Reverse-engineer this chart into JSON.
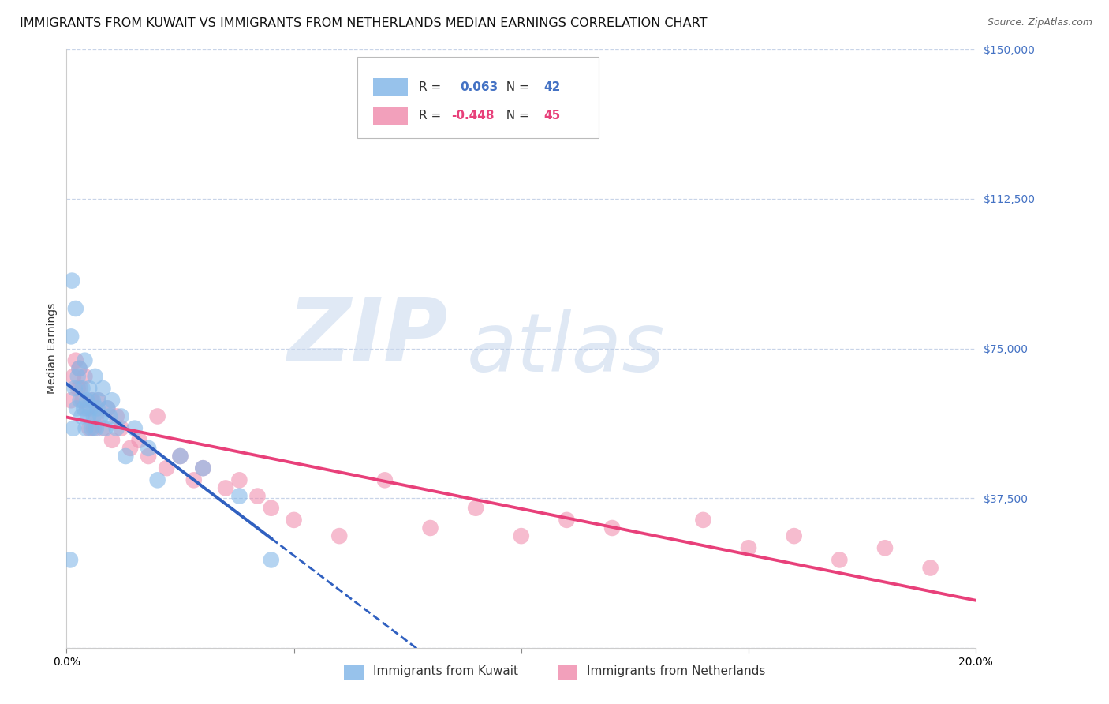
{
  "title": "IMMIGRANTS FROM KUWAIT VS IMMIGRANTS FROM NETHERLANDS MEDIAN EARNINGS CORRELATION CHART",
  "source": "Source: ZipAtlas.com",
  "ylabel": "Median Earnings",
  "xlim": [
    0.0,
    0.2
  ],
  "ylim": [
    0,
    150000
  ],
  "yticks": [
    0,
    37500,
    75000,
    112500,
    150000
  ],
  "ytick_labels": [
    "",
    "$37,500",
    "$75,000",
    "$112,500",
    "$150,000"
  ],
  "xticks": [
    0.0,
    0.05,
    0.1,
    0.15,
    0.2
  ],
  "xtick_labels": [
    "0.0%",
    "",
    "",
    "",
    "20.0%"
  ],
  "watermark_zip": "ZIP",
  "watermark_atlas": "atlas",
  "kuwait_color": "#85b8e8",
  "netherlands_color": "#f090b0",
  "kuwait_R": 0.063,
  "kuwait_N": 42,
  "netherlands_R": -0.448,
  "netherlands_N": 45,
  "kuwait_line_color": "#3060c0",
  "netherlands_line_color": "#e8407a",
  "background_color": "#ffffff",
  "grid_color": "#c8d4e8",
  "title_fontsize": 11.5,
  "axis_label_fontsize": 10,
  "tick_fontsize": 10,
  "bottom_legend": [
    "Immigrants from Kuwait",
    "Immigrants from Netherlands"
  ],
  "kuwait_pts_x": [
    0.0008,
    0.001,
    0.0012,
    0.0015,
    0.0018,
    0.002,
    0.0022,
    0.0025,
    0.0028,
    0.003,
    0.0033,
    0.0035,
    0.0038,
    0.004,
    0.0042,
    0.0045,
    0.0048,
    0.005,
    0.0053,
    0.0055,
    0.0058,
    0.006,
    0.0063,
    0.0065,
    0.0068,
    0.007,
    0.0075,
    0.008,
    0.0085,
    0.009,
    0.0095,
    0.01,
    0.011,
    0.012,
    0.013,
    0.015,
    0.018,
    0.02,
    0.025,
    0.03,
    0.038,
    0.045
  ],
  "kuwait_pts_y": [
    22000,
    78000,
    92000,
    55000,
    65000,
    85000,
    60000,
    68000,
    70000,
    62000,
    58000,
    65000,
    60000,
    72000,
    55000,
    62000,
    58000,
    65000,
    60000,
    55000,
    62000,
    58000,
    68000,
    55000,
    60000,
    62000,
    58000,
    65000,
    55000,
    60000,
    58000,
    62000,
    55000,
    58000,
    48000,
    55000,
    50000,
    42000,
    48000,
    45000,
    38000,
    22000
  ],
  "netherlands_pts_x": [
    0.001,
    0.0015,
    0.002,
    0.0025,
    0.0028,
    0.003,
    0.0035,
    0.004,
    0.0045,
    0.005,
    0.0055,
    0.006,
    0.0065,
    0.007,
    0.008,
    0.009,
    0.01,
    0.011,
    0.012,
    0.014,
    0.016,
    0.018,
    0.02,
    0.022,
    0.025,
    0.028,
    0.03,
    0.035,
    0.038,
    0.042,
    0.045,
    0.05,
    0.06,
    0.07,
    0.08,
    0.09,
    0.1,
    0.11,
    0.12,
    0.14,
    0.15,
    0.16,
    0.17,
    0.18,
    0.19
  ],
  "netherlands_pts_y": [
    62000,
    68000,
    72000,
    65000,
    70000,
    65000,
    62000,
    68000,
    60000,
    55000,
    62000,
    55000,
    58000,
    62000,
    55000,
    60000,
    52000,
    58000,
    55000,
    50000,
    52000,
    48000,
    58000,
    45000,
    48000,
    42000,
    45000,
    40000,
    42000,
    38000,
    35000,
    32000,
    28000,
    42000,
    30000,
    35000,
    28000,
    32000,
    30000,
    32000,
    25000,
    28000,
    22000,
    25000,
    20000
  ]
}
